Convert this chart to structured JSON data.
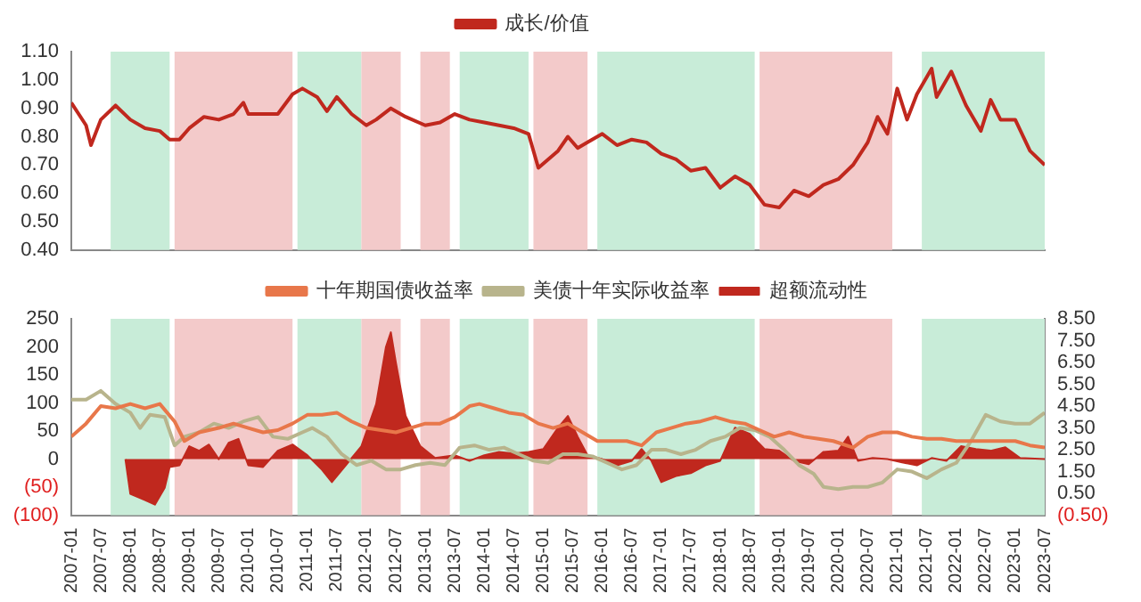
{
  "chart_data": [
    {
      "type": "line",
      "legend": "top",
      "tick_labels": "y",
      "xlim": [
        "2007-01",
        "2023-07"
      ],
      "xticks": [
        "2007-01",
        "2007-07",
        "2008-01",
        "2008-07",
        "2009-01",
        "2009-07",
        "2010-01",
        "2010-07",
        "2011-01",
        "2011-07",
        "2012-01",
        "2012-07",
        "2013-01",
        "2013-07",
        "2014-01",
        "2014-07",
        "2015-01",
        "2015-07",
        "2016-01",
        "2016-07",
        "2017-01",
        "2017-07",
        "2018-01",
        "2018-07",
        "2019-01",
        "2019-07",
        "2020-01",
        "2020-07",
        "2021-01",
        "2021-07",
        "2022-01",
        "2022-07",
        "2023-01",
        "2023-07"
      ],
      "ylim": [
        0.4,
        1.1
      ],
      "yticks": [
        {
          "value": 0.4,
          "label": "0.40"
        },
        {
          "value": 0.5,
          "label": "0.50"
        },
        {
          "value": 0.6,
          "label": "0.60"
        },
        {
          "value": 0.7,
          "label": "0.70"
        },
        {
          "value": 0.8,
          "label": "0.80"
        },
        {
          "value": 0.9,
          "label": "0.90"
        },
        {
          "value": 1.0,
          "label": "1.00"
        },
        {
          "value": 1.1,
          "label": "1.10"
        }
      ],
      "bands": [
        {
          "axis": "x",
          "from": "2007-09",
          "to": "2008-09",
          "color": "#c8ecd8"
        },
        {
          "axis": "x",
          "from": "2008-10",
          "to": "2010-10",
          "color": "#f3caca"
        },
        {
          "axis": "x",
          "from": "2010-11",
          "to": "2011-12",
          "color": "#c8ecd8"
        },
        {
          "axis": "x",
          "from": "2011-12",
          "to": "2012-08",
          "color": "#f3caca"
        },
        {
          "axis": "x",
          "from": "2012-12",
          "to": "2013-06",
          "color": "#f3caca"
        },
        {
          "axis": "x",
          "from": "2013-08",
          "to": "2014-10",
          "color": "#c8ecd8"
        },
        {
          "axis": "x",
          "from": "2014-11",
          "to": "2015-10",
          "color": "#f3caca"
        },
        {
          "axis": "x",
          "from": "2015-12",
          "to": "2018-08",
          "color": "#c8ecd8"
        },
        {
          "axis": "x",
          "from": "2018-09",
          "to": "2020-12",
          "color": "#f3caca"
        },
        {
          "axis": "x",
          "from": "2021-06",
          "to": "2023-07",
          "color": "#c8ecd8"
        }
      ],
      "series": [
        {
          "name": "成长/价值",
          "color": "#c0281e",
          "x": [
            "2007-01",
            "2007-04",
            "2007-05",
            "2007-07",
            "2007-10",
            "2008-01",
            "2008-04",
            "2008-07",
            "2008-09",
            "2008-11",
            "2009-01",
            "2009-04",
            "2009-07",
            "2009-10",
            "2009-12",
            "2010-01",
            "2010-04",
            "2010-07",
            "2010-10",
            "2010-12",
            "2011-03",
            "2011-05",
            "2011-07",
            "2011-10",
            "2012-01",
            "2012-03",
            "2012-06",
            "2012-09",
            "2013-01",
            "2013-04",
            "2013-07",
            "2013-10",
            "2014-01",
            "2014-04",
            "2014-07",
            "2014-10",
            "2014-12",
            "2015-04",
            "2015-06",
            "2015-08",
            "2015-10",
            "2016-01",
            "2016-04",
            "2016-07",
            "2016-10",
            "2017-01",
            "2017-04",
            "2017-07",
            "2017-10",
            "2018-01",
            "2018-04",
            "2018-07",
            "2018-10",
            "2019-01",
            "2019-04",
            "2019-07",
            "2019-10",
            "2020-01",
            "2020-04",
            "2020-07",
            "2020-09",
            "2020-11",
            "2021-01",
            "2021-03",
            "2021-05",
            "2021-08",
            "2021-09",
            "2021-12",
            "2022-03",
            "2022-06",
            "2022-08",
            "2022-10",
            "2023-01",
            "2023-04",
            "2023-07"
          ],
          "values": [
            0.92,
            0.84,
            0.77,
            0.86,
            0.91,
            0.86,
            0.83,
            0.82,
            0.79,
            0.79,
            0.83,
            0.87,
            0.86,
            0.88,
            0.92,
            0.88,
            0.88,
            0.88,
            0.95,
            0.97,
            0.94,
            0.89,
            0.94,
            0.88,
            0.84,
            0.86,
            0.9,
            0.87,
            0.84,
            0.85,
            0.88,
            0.86,
            0.85,
            0.84,
            0.83,
            0.81,
            0.69,
            0.75,
            0.8,
            0.76,
            0.78,
            0.81,
            0.77,
            0.79,
            0.78,
            0.74,
            0.72,
            0.68,
            0.69,
            0.62,
            0.66,
            0.63,
            0.56,
            0.55,
            0.61,
            0.59,
            0.63,
            0.65,
            0.7,
            0.78,
            0.87,
            0.81,
            0.97,
            0.86,
            0.95,
            1.04,
            0.94,
            1.03,
            0.91,
            0.82,
            0.93,
            0.86,
            0.86,
            0.75,
            0.7
          ]
        }
      ]
    },
    {
      "type": "line",
      "legend": "top",
      "xlim": [
        "2007-01",
        "2023-07"
      ],
      "xticks": [
        "2007-01",
        "2007-07",
        "2008-01",
        "2008-07",
        "2009-01",
        "2009-07",
        "2010-01",
        "2010-07",
        "2011-01",
        "2011-07",
        "2012-01",
        "2012-07",
        "2013-01",
        "2013-07",
        "2014-01",
        "2014-07",
        "2015-01",
        "2015-07",
        "2016-01",
        "2016-07",
        "2017-01",
        "2017-07",
        "2018-01",
        "2018-07",
        "2019-01",
        "2019-07",
        "2020-01",
        "2020-07",
        "2021-01",
        "2021-07",
        "2022-01",
        "2022-07",
        "2023-01",
        "2023-07"
      ],
      "ylim": [
        -100,
        250
      ],
      "yticks": [
        {
          "value": -100,
          "label": "(100)"
        },
        {
          "value": -50,
          "label": "(50)"
        },
        0,
        50,
        100,
        150,
        200,
        250
      ],
      "y2lim": [
        -0.5,
        8.5
      ],
      "y2ticks": [
        {
          "value": -0.5,
          "label": "(0.50)"
        },
        {
          "value": 0.5,
          "label": "0.50"
        },
        {
          "value": 1.5,
          "label": "1.50"
        },
        {
          "value": 2.5,
          "label": "2.50"
        },
        {
          "value": 3.5,
          "label": "3.50"
        },
        {
          "value": 4.5,
          "label": "4.50"
        },
        {
          "value": 5.5,
          "label": "5.50"
        },
        {
          "value": 6.5,
          "label": "6.50"
        },
        {
          "value": 7.5,
          "label": "7.50"
        },
        {
          "value": 8.5,
          "label": "8.50"
        }
      ],
      "bands": [
        {
          "axis": "x",
          "from": "2007-09",
          "to": "2008-09",
          "color": "#c8ecd8"
        },
        {
          "axis": "x",
          "from": "2008-10",
          "to": "2010-10",
          "color": "#f3caca"
        },
        {
          "axis": "x",
          "from": "2010-11",
          "to": "2011-12",
          "color": "#c8ecd8"
        },
        {
          "axis": "x",
          "from": "2011-12",
          "to": "2012-08",
          "color": "#f3caca"
        },
        {
          "axis": "x",
          "from": "2012-12",
          "to": "2013-06",
          "color": "#f3caca"
        },
        {
          "axis": "x",
          "from": "2013-08",
          "to": "2014-10",
          "color": "#c8ecd8"
        },
        {
          "axis": "x",
          "from": "2014-11",
          "to": "2015-10",
          "color": "#f3caca"
        },
        {
          "axis": "x",
          "from": "2015-12",
          "to": "2018-08",
          "color": "#c8ecd8"
        },
        {
          "axis": "x",
          "from": "2018-09",
          "to": "2020-12",
          "color": "#f3caca"
        },
        {
          "axis": "x",
          "from": "2021-06",
          "to": "2023-07",
          "color": "#c8ecd8"
        }
      ],
      "series": [
        {
          "name": "超额流动性",
          "type": "area",
          "color": "#c0281e",
          "x": [
            "2007-12",
            "2008-01",
            "2008-04",
            "2008-06",
            "2008-08",
            "2008-09",
            "2008-11",
            "2009-01",
            "2009-03",
            "2009-05",
            "2009-07",
            "2009-09",
            "2009-11",
            "2010-01",
            "2010-04",
            "2010-07",
            "2010-10",
            "2011-01",
            "2011-04",
            "2011-06",
            "2011-09",
            "2011-12",
            "2012-03",
            "2012-05",
            "2012-06",
            "2012-07",
            "2012-09",
            "2012-12",
            "2013-03",
            "2013-07",
            "2013-10",
            "2014-01",
            "2014-04",
            "2014-07",
            "2014-10",
            "2015-01",
            "2015-04",
            "2015-06",
            "2015-08",
            "2015-10",
            "2016-01",
            "2016-04",
            "2016-07",
            "2016-09",
            "2016-11",
            "2017-01",
            "2017-04",
            "2017-07",
            "2017-10",
            "2018-01",
            "2018-04",
            "2018-07",
            "2018-10",
            "2019-01",
            "2019-04",
            "2019-07",
            "2019-10",
            "2020-01",
            "2020-03",
            "2020-05",
            "2020-08",
            "2020-11",
            "2021-02",
            "2021-05",
            "2021-08",
            "2021-11",
            "2022-02",
            "2022-05",
            "2022-08",
            "2022-11",
            "2023-02",
            "2023-07"
          ],
          "values": [
            0,
            -62,
            -73,
            -81,
            -51,
            -14,
            -11,
            23,
            15,
            26,
            0,
            29,
            36,
            -11,
            -14,
            15,
            26,
            7,
            -19,
            -41,
            -9,
            23,
            98,
            200,
            226,
            173,
            77,
            23,
            2,
            7,
            -3,
            7,
            13,
            10,
            13,
            18,
            56,
            77,
            40,
            7,
            0,
            -11,
            -3,
            18,
            -3,
            -41,
            -30,
            -25,
            -11,
            -3,
            56,
            45,
            18,
            15,
            -3,
            -9,
            13,
            15,
            40,
            -3,
            2,
            0,
            -6,
            -11,
            2,
            -3,
            23,
            18,
            15,
            21,
            2,
            0
          ]
        },
        {
          "name": "十年期国债收益率",
          "axis": "y2",
          "color": "#e8774a",
          "x": [
            "2007-01",
            "2007-04",
            "2007-07",
            "2007-10",
            "2008-01",
            "2008-04",
            "2008-07",
            "2008-10",
            "2008-12",
            "2009-03",
            "2009-07",
            "2009-10",
            "2010-01",
            "2010-04",
            "2010-07",
            "2010-10",
            "2011-01",
            "2011-04",
            "2011-07",
            "2011-10",
            "2012-01",
            "2012-04",
            "2012-07",
            "2012-10",
            "2013-01",
            "2013-04",
            "2013-07",
            "2013-10",
            "2013-12",
            "2014-03",
            "2014-06",
            "2014-09",
            "2014-12",
            "2015-03",
            "2015-06",
            "2015-09",
            "2015-12",
            "2016-03",
            "2016-06",
            "2016-09",
            "2016-12",
            "2017-03",
            "2017-06",
            "2017-09",
            "2017-12",
            "2018-03",
            "2018-06",
            "2018-09",
            "2018-12",
            "2019-03",
            "2019-06",
            "2019-09",
            "2019-12",
            "2020-04",
            "2020-07",
            "2020-10",
            "2021-01",
            "2021-04",
            "2021-07",
            "2021-10",
            "2022-01",
            "2022-04",
            "2022-07",
            "2022-10",
            "2023-01",
            "2023-04",
            "2023-07"
          ],
          "values": [
            3.1,
            3.7,
            4.5,
            4.4,
            4.6,
            4.4,
            4.6,
            3.8,
            2.9,
            3.3,
            3.5,
            3.7,
            3.5,
            3.3,
            3.4,
            3.7,
            4.1,
            4.1,
            4.2,
            3.8,
            3.5,
            3.4,
            3.3,
            3.5,
            3.7,
            3.7,
            4.0,
            4.5,
            4.6,
            4.4,
            4.2,
            4.1,
            3.7,
            3.5,
            3.7,
            3.3,
            2.9,
            2.9,
            2.9,
            2.7,
            3.3,
            3.5,
            3.7,
            3.8,
            4.0,
            3.8,
            3.7,
            3.4,
            3.1,
            3.3,
            3.1,
            3.0,
            2.9,
            2.6,
            3.1,
            3.3,
            3.3,
            3.1,
            3.0,
            3.0,
            2.9,
            2.9,
            2.9,
            2.9,
            2.9,
            2.7,
            2.6
          ]
        },
        {
          "name": "美债十年实际收益率",
          "axis": "y2",
          "color": "#b8b48c",
          "x": [
            "2007-01",
            "2007-04",
            "2007-07",
            "2007-10",
            "2008-01",
            "2008-03",
            "2008-05",
            "2008-08",
            "2008-10",
            "2008-12",
            "2009-03",
            "2009-06",
            "2009-09",
            "2009-12",
            "2010-03",
            "2010-06",
            "2010-09",
            "2010-12",
            "2011-02",
            "2011-05",
            "2011-08",
            "2011-11",
            "2012-02",
            "2012-05",
            "2012-08",
            "2012-11",
            "2013-02",
            "2013-05",
            "2013-08",
            "2013-11",
            "2014-02",
            "2014-05",
            "2014-08",
            "2014-11",
            "2015-02",
            "2015-05",
            "2015-08",
            "2015-11",
            "2016-02",
            "2016-05",
            "2016-08",
            "2016-11",
            "2017-02",
            "2017-05",
            "2017-08",
            "2017-11",
            "2018-02",
            "2018-05",
            "2018-08",
            "2018-11",
            "2019-02",
            "2019-05",
            "2019-08",
            "2019-10",
            "2020-01",
            "2020-04",
            "2020-07",
            "2020-10",
            "2021-01",
            "2021-04",
            "2021-07",
            "2021-10",
            "2022-01",
            "2022-04",
            "2022-07",
            "2022-10",
            "2023-01",
            "2023-04",
            "2023-07"
          ],
          "values": [
            4.8,
            4.8,
            5.2,
            4.6,
            4.2,
            3.5,
            4.1,
            4.0,
            2.7,
            3.1,
            3.3,
            3.7,
            3.5,
            3.8,
            4.0,
            3.1,
            3.0,
            3.3,
            3.5,
            3.1,
            2.3,
            1.8,
            2.0,
            1.6,
            1.6,
            1.8,
            1.9,
            1.8,
            2.6,
            2.7,
            2.5,
            2.6,
            2.3,
            2.0,
            1.9,
            2.3,
            2.3,
            2.2,
            1.9,
            1.6,
            1.8,
            2.5,
            2.5,
            2.3,
            2.5,
            2.9,
            3.1,
            3.5,
            3.4,
            3.1,
            2.5,
            1.8,
            1.4,
            0.8,
            0.7,
            0.8,
            0.8,
            1.0,
            1.6,
            1.5,
            1.2,
            1.6,
            1.9,
            2.9,
            4.1,
            3.8,
            3.7,
            3.7,
            4.2
          ]
        }
      ]
    }
  ]
}
